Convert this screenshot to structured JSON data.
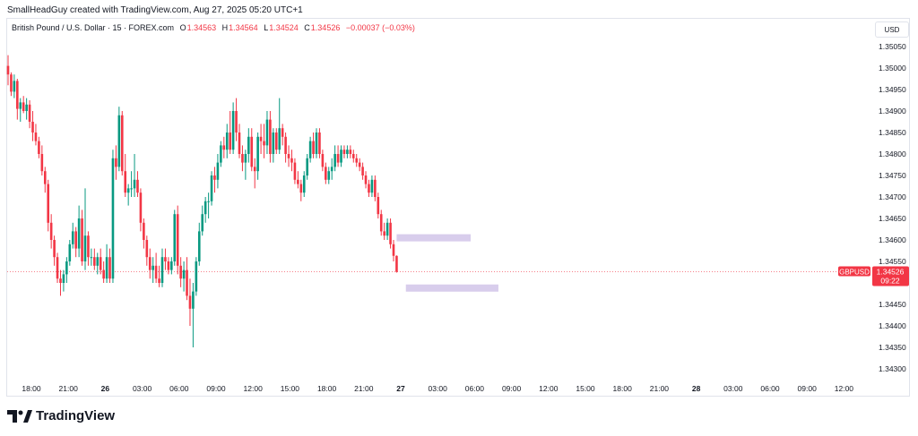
{
  "header": {
    "attribution": "SmallHeadGuy created with TradingView.com, Aug 27, 2025 05:20 UTC+1"
  },
  "legend": {
    "symbol": "British Pound / U.S. Dollar · 15 · FOREX.com",
    "o_label": "O",
    "o_value": "1.34563",
    "h_label": "H",
    "h_value": "1.34564",
    "l_label": "L",
    "l_value": "1.34524",
    "c_label": "C",
    "c_value": "1.34526",
    "change": "−0.00037 (−0.03%)"
  },
  "currency": "USD",
  "branding": {
    "logo_text": "TradingView"
  },
  "colors": {
    "up": "#089981",
    "down": "#f23645",
    "zone": "#d1c4e9",
    "grid_text": "#131722"
  },
  "chart_data": {
    "type": "candlestick",
    "symbol": "GBPUSD",
    "interval": "15",
    "last_price": "1.34526",
    "countdown": "09:22",
    "y_ticks": [
      "1.35050",
      "1.35000",
      "1.34950",
      "1.34900",
      "1.34850",
      "1.34800",
      "1.34750",
      "1.34700",
      "1.34650",
      "1.34600",
      "1.34550",
      "1.34450",
      "1.34400",
      "1.34350",
      "1.34300"
    ],
    "ylim": [
      1.3428,
      1.351
    ],
    "x_ticks": [
      {
        "label": "18:00",
        "bold": false
      },
      {
        "label": "21:00",
        "bold": false
      },
      {
        "label": "26",
        "bold": true
      },
      {
        "label": "03:00",
        "bold": false
      },
      {
        "label": "06:00",
        "bold": false
      },
      {
        "label": "09:00",
        "bold": false
      },
      {
        "label": "12:00",
        "bold": false
      },
      {
        "label": "15:00",
        "bold": false
      },
      {
        "label": "18:00",
        "bold": false
      },
      {
        "label": "21:00",
        "bold": false
      },
      {
        "label": "27",
        "bold": true
      },
      {
        "label": "03:00",
        "bold": false
      },
      {
        "label": "06:00",
        "bold": false
      },
      {
        "label": "09:00",
        "bold": false
      },
      {
        "label": "12:00",
        "bold": false
      },
      {
        "label": "15:00",
        "bold": false
      },
      {
        "label": "18:00",
        "bold": false
      },
      {
        "label": "21:00",
        "bold": false
      },
      {
        "label": "28",
        "bold": true
      },
      {
        "label": "03:00",
        "bold": false
      },
      {
        "label": "06:00",
        "bold": false
      },
      {
        "label": "09:00",
        "bold": false
      },
      {
        "label": "12:00",
        "bold": false
      }
    ],
    "zones": [
      {
        "t_start": 126,
        "t_end": 150,
        "price": 1.34605
      },
      {
        "t_start": 129,
        "t_end": 159,
        "price": 1.34488
      }
    ],
    "candles": [
      [
        1.35005,
        1.3503,
        1.3496,
        1.34985
      ],
      [
        1.34985,
        1.3499,
        1.34935,
        1.34945
      ],
      [
        1.34945,
        1.34985,
        1.3493,
        1.3497
      ],
      [
        1.3497,
        1.34975,
        1.3488,
        1.34905
      ],
      [
        1.34905,
        1.3493,
        1.34875,
        1.3492
      ],
      [
        1.3492,
        1.34935,
        1.34895,
        1.349
      ],
      [
        1.349,
        1.3493,
        1.3488,
        1.34915
      ],
      [
        1.34915,
        1.34925,
        1.3486,
        1.34875
      ],
      [
        1.34875,
        1.349,
        1.3483,
        1.3485
      ],
      [
        1.3485,
        1.3487,
        1.3482,
        1.3483
      ],
      [
        1.3483,
        1.3484,
        1.3479,
        1.348
      ],
      [
        1.348,
        1.3482,
        1.3475,
        1.3476
      ],
      [
        1.3476,
        1.3477,
        1.3471,
        1.3473
      ],
      [
        1.3473,
        1.3474,
        1.3462,
        1.3464
      ],
      [
        1.3464,
        1.3466,
        1.3458,
        1.346
      ],
      [
        1.346,
        1.3461,
        1.3454,
        1.3456
      ],
      [
        1.3456,
        1.3457,
        1.345,
        1.3451
      ],
      [
        1.3451,
        1.3453,
        1.3447,
        1.345
      ],
      [
        1.345,
        1.3453,
        1.3448,
        1.3452
      ],
      [
        1.3452,
        1.3456,
        1.345,
        1.3455
      ],
      [
        1.3455,
        1.346,
        1.3454,
        1.3459
      ],
      [
        1.3459,
        1.3464,
        1.3458,
        1.3462
      ],
      [
        1.3462,
        1.3463,
        1.3456,
        1.3458
      ],
      [
        1.3458,
        1.3468,
        1.3456,
        1.3465
      ],
      [
        1.3465,
        1.3467,
        1.3454,
        1.3455
      ],
      [
        1.3455,
        1.3472,
        1.3453,
        1.3461
      ],
      [
        1.3461,
        1.3462,
        1.3454,
        1.3456
      ],
      [
        1.3456,
        1.3458,
        1.3454,
        1.3456
      ],
      [
        1.3456,
        1.3458,
        1.3453,
        1.3454
      ],
      [
        1.3454,
        1.3457,
        1.3452,
        1.3456
      ],
      [
        1.3456,
        1.3458,
        1.3452,
        1.3453
      ],
      [
        1.3453,
        1.3455,
        1.345,
        1.3451
      ],
      [
        1.3451,
        1.3459,
        1.345,
        1.3456
      ],
      [
        1.3456,
        1.3458,
        1.345,
        1.3451
      ],
      [
        1.3451,
        1.3481,
        1.345,
        1.3479
      ],
      [
        1.3479,
        1.3482,
        1.3474,
        1.3477
      ],
      [
        1.3477,
        1.3491,
        1.3476,
        1.3489
      ],
      [
        1.3489,
        1.349,
        1.3475,
        1.3476
      ],
      [
        1.3476,
        1.348,
        1.347,
        1.3471
      ],
      [
        1.3471,
        1.3473,
        1.3468,
        1.3472
      ],
      [
        1.3472,
        1.3476,
        1.347,
        1.3472
      ],
      [
        1.3472,
        1.348,
        1.347,
        1.3474
      ],
      [
        1.3474,
        1.3476,
        1.347,
        1.3471
      ],
      [
        1.3471,
        1.3472,
        1.3462,
        1.3464
      ],
      [
        1.3464,
        1.3465,
        1.3458,
        1.346
      ],
      [
        1.346,
        1.3461,
        1.3454,
        1.3456
      ],
      [
        1.3456,
        1.3458,
        1.3451,
        1.3453
      ],
      [
        1.3453,
        1.3456,
        1.345,
        1.3454
      ],
      [
        1.3454,
        1.3457,
        1.345,
        1.3451
      ],
      [
        1.3451,
        1.3454,
        1.3449,
        1.345
      ],
      [
        1.345,
        1.3458,
        1.3449,
        1.3456
      ],
      [
        1.3456,
        1.3458,
        1.3453,
        1.3455
      ],
      [
        1.3455,
        1.3456,
        1.3452,
        1.3453
      ],
      [
        1.3453,
        1.3456,
        1.3452,
        1.3455
      ],
      [
        1.3455,
        1.3467,
        1.3454,
        1.3466
      ],
      [
        1.3466,
        1.3468,
        1.3452,
        1.3454
      ],
      [
        1.3454,
        1.3456,
        1.3449,
        1.3451
      ],
      [
        1.3451,
        1.3455,
        1.3448,
        1.3453
      ],
      [
        1.3453,
        1.3456,
        1.3446,
        1.3447
      ],
      [
        1.3447,
        1.3451,
        1.344,
        1.3444
      ],
      [
        1.3444,
        1.345,
        1.3435,
        1.3448
      ],
      [
        1.3448,
        1.3456,
        1.3447,
        1.3455
      ],
      [
        1.3455,
        1.3464,
        1.3454,
        1.3462
      ],
      [
        1.3462,
        1.3468,
        1.3461,
        1.3466
      ],
      [
        1.3466,
        1.347,
        1.3464,
        1.3469
      ],
      [
        1.3469,
        1.3471,
        1.3465,
        1.3469
      ],
      [
        1.3469,
        1.3476,
        1.3468,
        1.3475
      ],
      [
        1.3475,
        1.3477,
        1.3471,
        1.3474
      ],
      [
        1.3474,
        1.348,
        1.3472,
        1.3478
      ],
      [
        1.3478,
        1.3483,
        1.3477,
        1.3482
      ],
      [
        1.3482,
        1.3484,
        1.3479,
        1.3481
      ],
      [
        1.3481,
        1.3487,
        1.3479,
        1.3485
      ],
      [
        1.3485,
        1.349,
        1.348,
        1.3481
      ],
      [
        1.3481,
        1.3492,
        1.348,
        1.349
      ],
      [
        1.349,
        1.3493,
        1.3483,
        1.3485
      ],
      [
        1.3485,
        1.3487,
        1.3479,
        1.348
      ],
      [
        1.348,
        1.3482,
        1.3476,
        1.3478
      ],
      [
        1.3478,
        1.3481,
        1.3474,
        1.348
      ],
      [
        1.348,
        1.3486,
        1.3478,
        1.3484
      ],
      [
        1.3484,
        1.3486,
        1.3476,
        1.3477
      ],
      [
        1.3477,
        1.3479,
        1.3472,
        1.3476
      ],
      [
        1.3476,
        1.3485,
        1.3474,
        1.3484
      ],
      [
        1.3484,
        1.3487,
        1.348,
        1.3483
      ],
      [
        1.3483,
        1.3487,
        1.3479,
        1.3482
      ],
      [
        1.3482,
        1.349,
        1.348,
        1.3488
      ],
      [
        1.3488,
        1.349,
        1.3478,
        1.348
      ],
      [
        1.348,
        1.3486,
        1.3478,
        1.3485
      ],
      [
        1.3485,
        1.3486,
        1.348,
        1.3481
      ],
      [
        1.3481,
        1.3493,
        1.348,
        1.3486
      ],
      [
        1.3486,
        1.3487,
        1.3482,
        1.3484
      ],
      [
        1.3484,
        1.3485,
        1.3478,
        1.348
      ],
      [
        1.348,
        1.3482,
        1.3477,
        1.3479
      ],
      [
        1.3479,
        1.3481,
        1.3476,
        1.3478
      ],
      [
        1.3478,
        1.3479,
        1.3473,
        1.3474
      ],
      [
        1.3474,
        1.3476,
        1.3472,
        1.3473
      ],
      [
        1.3473,
        1.3474,
        1.3469,
        1.3471
      ],
      [
        1.3471,
        1.3476,
        1.347,
        1.3475
      ],
      [
        1.3475,
        1.348,
        1.3474,
        1.3479
      ],
      [
        1.3479,
        1.3484,
        1.3478,
        1.3483
      ],
      [
        1.3483,
        1.3485,
        1.3479,
        1.348
      ],
      [
        1.348,
        1.3486,
        1.3479,
        1.3485
      ],
      [
        1.3485,
        1.3486,
        1.3479,
        1.348
      ],
      [
        1.348,
        1.3481,
        1.3476,
        1.3477
      ],
      [
        1.3477,
        1.3478,
        1.3473,
        1.3474
      ],
      [
        1.3474,
        1.3477,
        1.3473,
        1.3476
      ],
      [
        1.3476,
        1.3479,
        1.3474,
        1.3477
      ],
      [
        1.3477,
        1.3482,
        1.3476,
        1.348
      ],
      [
        1.348,
        1.3482,
        1.3477,
        1.3478
      ],
      [
        1.3478,
        1.3482,
        1.3477,
        1.3481
      ],
      [
        1.3481,
        1.3482,
        1.3479,
        1.348
      ],
      [
        1.348,
        1.3482,
        1.3479,
        1.3481
      ],
      [
        1.3481,
        1.3482,
        1.3479,
        1.348
      ],
      [
        1.348,
        1.3481,
        1.3478,
        1.3479
      ],
      [
        1.3479,
        1.348,
        1.3477,
        1.3478
      ],
      [
        1.3478,
        1.3479,
        1.3476,
        1.3477
      ],
      [
        1.3477,
        1.3478,
        1.3474,
        1.3475
      ],
      [
        1.3475,
        1.3476,
        1.3472,
        1.3473
      ],
      [
        1.3473,
        1.3474,
        1.347,
        1.3471
      ],
      [
        1.3471,
        1.3475,
        1.347,
        1.3474
      ],
      [
        1.3474,
        1.3475,
        1.3469,
        1.347
      ],
      [
        1.347,
        1.3471,
        1.3465,
        1.3466
      ],
      [
        1.3466,
        1.3467,
        1.3461,
        1.3462
      ],
      [
        1.3462,
        1.3464,
        1.346,
        1.3461
      ],
      [
        1.3461,
        1.3465,
        1.346,
        1.3464
      ],
      [
        1.3464,
        1.3465,
        1.3458,
        1.3459
      ],
      [
        1.3459,
        1.346,
        1.3455,
        1.34563
      ],
      [
        1.34563,
        1.34564,
        1.34524,
        1.34526
      ]
    ]
  }
}
